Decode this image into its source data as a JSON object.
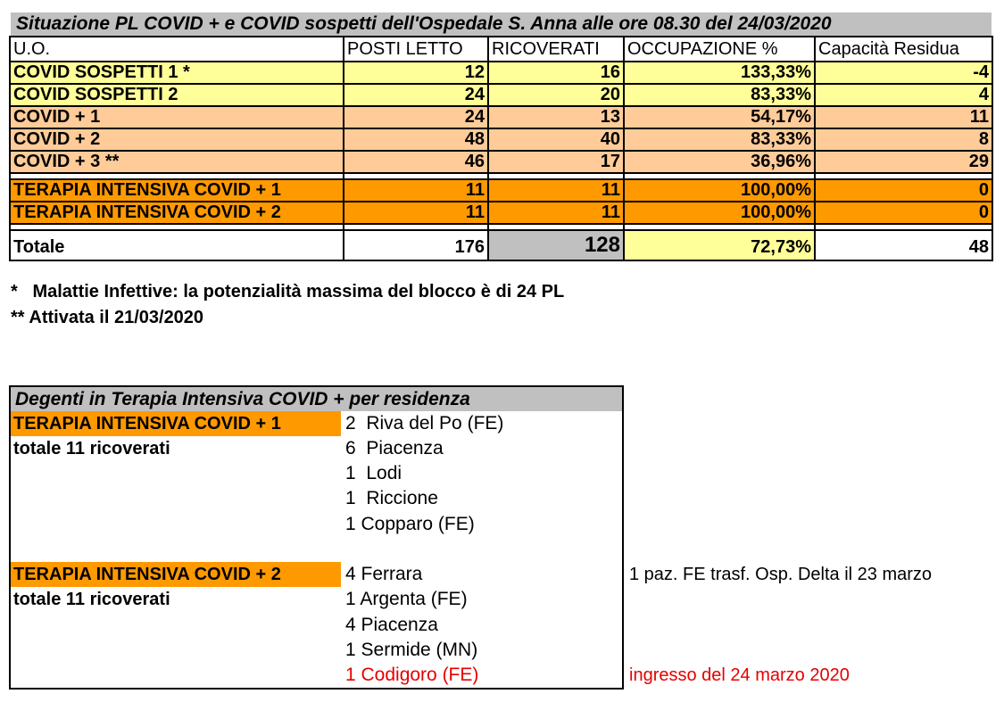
{
  "table1": {
    "title": "Situazione PL COVID + e COVID sospetti dell'Ospedale S. Anna alle ore 08.30 del 24/03/2020",
    "headers": [
      "U.O.",
      "POSTI LETTO",
      "RICOVERATI",
      "OCCUPAZIONE %",
      "Capacità Residua"
    ],
    "rows": [
      {
        "uo": "COVID SOSPETTI 1 *",
        "posti": "12",
        "ricoverati": "16",
        "occupazione": "133,33%",
        "residua": "-4"
      },
      {
        "uo": "COVID SOSPETTI 2",
        "posti": "24",
        "ricoverati": "20",
        "occupazione": "83,33%",
        "residua": "4"
      },
      {
        "uo": "COVID + 1",
        "posti": "24",
        "ricoverati": "13",
        "occupazione": "54,17%",
        "residua": "11"
      },
      {
        "uo": "COVID + 2",
        "posti": "48",
        "ricoverati": "40",
        "occupazione": "83,33%",
        "residua": "8"
      },
      {
        "uo": "COVID + 3 **",
        "posti": "46",
        "ricoverati": "17",
        "occupazione": "36,96%",
        "residua": "29"
      },
      {
        "uo": "TERAPIA INTENSIVA COVID + 1",
        "posti": "11",
        "ricoverati": "11",
        "occupazione": "100,00%",
        "residua": "0"
      },
      {
        "uo": "TERAPIA INTENSIVA COVID + 2",
        "posti": "11",
        "ricoverati": "11",
        "occupazione": "100,00%",
        "residua": "0"
      }
    ],
    "total": {
      "uo": "Totale",
      "posti": "176",
      "ricoverati": "128",
      "occupazione": "72,73%",
      "residua": "48"
    },
    "colors": {
      "suspect": "#ffff99",
      "covid": "#ffcc99",
      "intensive": "#ff9900",
      "header_gray": "#c0c0c0"
    }
  },
  "notes": [
    "*   Malattie Infettive: la potenzialità massima del blocco è di 24 PL",
    "** Attivata il 21/03/2020"
  ],
  "table2": {
    "title": "Degenti in Terapia Intensiva COVID + per residenza",
    "groups": [
      {
        "label": "TERAPIA INTENSIVA COVID + 1",
        "total": "totale 11 ricoverati",
        "residences": [
          "2  Riva del Po (FE)",
          "6  Piacenza",
          "1  Lodi",
          "1  Riccione",
          "1 Copparo (FE)"
        ]
      },
      {
        "label": "TERAPIA INTENSIVA COVID + 2",
        "total": "totale 11 ricoverati",
        "residences": [
          "4 Ferrara",
          "1 Argenta (FE)",
          "4 Piacenza",
          "1 Sermide (MN)",
          "1 Codigoro (FE)"
        ],
        "side_notes": [
          "1 paz. FE trasf. Osp. Delta il 23 marzo",
          "ingresso del 24 marzo 2020"
        ]
      }
    ],
    "highlight_color": "#e60000"
  }
}
